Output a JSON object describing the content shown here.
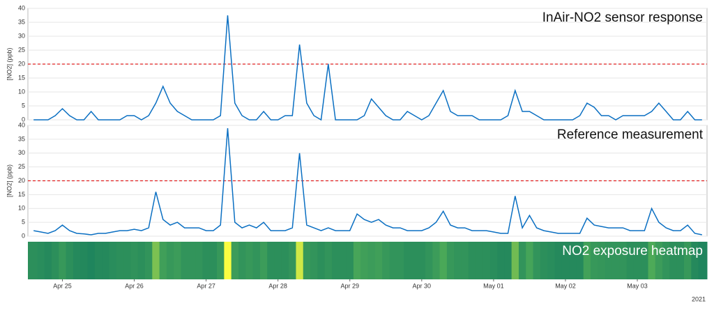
{
  "chart_data": {
    "x": [
      0.6,
      0.7,
      0.8,
      0.9,
      1.0,
      1.1,
      1.2,
      1.3,
      1.4,
      1.5,
      1.6,
      1.7,
      1.8,
      1.9,
      2.0,
      2.1,
      2.2,
      2.3,
      2.4,
      2.5,
      2.6,
      2.7,
      2.8,
      2.9,
      3.0,
      3.1,
      3.2,
      3.3,
      3.4,
      3.5,
      3.6,
      3.7,
      3.8,
      3.9,
      4.0,
      4.1,
      4.2,
      4.3,
      4.4,
      4.5,
      4.6,
      4.7,
      4.8,
      4.9,
      5.0,
      5.1,
      5.2,
      5.3,
      5.4,
      5.5,
      5.6,
      5.7,
      5.8,
      5.9,
      6.0,
      6.1,
      6.2,
      6.3,
      6.4,
      6.5,
      6.6,
      6.7,
      6.8,
      6.9,
      7.0,
      7.1,
      7.2,
      7.3,
      7.4,
      7.5,
      7.6,
      7.7,
      7.8,
      7.9,
      8.0,
      8.1,
      8.2,
      8.3,
      8.4,
      8.5,
      8.6,
      8.7,
      8.8,
      8.9,
      9.0,
      9.1,
      9.2,
      9.3,
      9.4,
      9.5,
      9.6,
      9.7,
      9.8,
      9.9
    ],
    "xlim": [
      0.52,
      9.97
    ],
    "xticks": [
      {
        "value": 1,
        "label": "Apr 25"
      },
      {
        "value": 2,
        "label": "Apr 26"
      },
      {
        "value": 3,
        "label": "Apr 27"
      },
      {
        "value": 4,
        "label": "Apr 28"
      },
      {
        "value": 5,
        "label": "Apr 29"
      },
      {
        "value": 6,
        "label": "Apr 30"
      },
      {
        "value": 7,
        "label": "May 01"
      },
      {
        "value": 8,
        "label": "May 02"
      },
      {
        "value": 9,
        "label": "May 03"
      }
    ],
    "year_label": "2021",
    "panels": [
      {
        "type": "line",
        "title": "InAir-NO2 sensor response",
        "ylabel": "[NO2] (ppb)",
        "color": "#0a6fc2",
        "ylim": [
          0,
          40
        ],
        "yticks": [
          0,
          5,
          10,
          15,
          20,
          25,
          30,
          35,
          40
        ],
        "grid": true,
        "threshold": 20,
        "threshold_color": "#e02020",
        "values": [
          0,
          0,
          0,
          1.5,
          4,
          1.5,
          0,
          0,
          3,
          0,
          0,
          0,
          0,
          1.5,
          1.5,
          0,
          1.5,
          6,
          12,
          6,
          3,
          1.5,
          0,
          0,
          0,
          0,
          1.5,
          37.5,
          6,
          1.5,
          0,
          0,
          3,
          0,
          0,
          1.5,
          1.5,
          27,
          6,
          1.5,
          0,
          20,
          0,
          0,
          0,
          0,
          1.5,
          7.5,
          4.5,
          1.5,
          0,
          0,
          3,
          1.5,
          0,
          1.5,
          6,
          10.5,
          3,
          1.5,
          1.5,
          1.5,
          0,
          0,
          0,
          0,
          1.5,
          10.5,
          3,
          3,
          1.5,
          0,
          0,
          0,
          0,
          0,
          1.5,
          6,
          4.5,
          1.5,
          1.5,
          0,
          1.5,
          1.5,
          1.5,
          1.5,
          3,
          6,
          3,
          0,
          0,
          3,
          0,
          0
        ]
      },
      {
        "type": "line",
        "title": "Reference measurement",
        "ylabel": "[NO2] (ppb)",
        "color": "#0a6fc2",
        "ylim": [
          0,
          40
        ],
        "yticks": [
          0,
          5,
          10,
          15,
          20,
          25,
          30,
          35,
          40
        ],
        "grid": true,
        "threshold": 20,
        "threshold_color": "#e02020",
        "values": [
          2,
          1.5,
          1,
          2,
          4,
          2,
          1,
          0.8,
          0.5,
          1,
          1,
          1.5,
          2,
          2,
          2.5,
          2,
          3,
          16,
          6,
          4,
          5,
          3,
          3,
          3,
          2,
          2,
          4,
          39,
          5,
          3,
          4,
          3,
          5,
          2,
          2,
          2,
          3,
          30,
          4,
          3,
          2,
          3,
          2,
          2,
          2,
          8,
          6,
          5,
          6,
          4,
          3,
          3,
          2,
          2,
          2,
          3,
          5,
          9,
          4,
          3,
          3,
          2,
          2,
          2,
          1.5,
          1,
          1,
          14.5,
          3,
          7.5,
          3,
          2,
          1.5,
          1,
          1,
          1,
          1,
          6.5,
          4,
          3.5,
          3,
          3,
          3,
          2,
          2,
          2,
          10,
          5,
          3,
          2,
          2,
          4,
          1,
          0.5
        ]
      }
    ],
    "heatmap": {
      "type": "heatmap",
      "title": "NO2 exposure heatmap",
      "colors": [
        "#127a5e",
        "#4daa58",
        "#ffff40"
      ]
    }
  }
}
